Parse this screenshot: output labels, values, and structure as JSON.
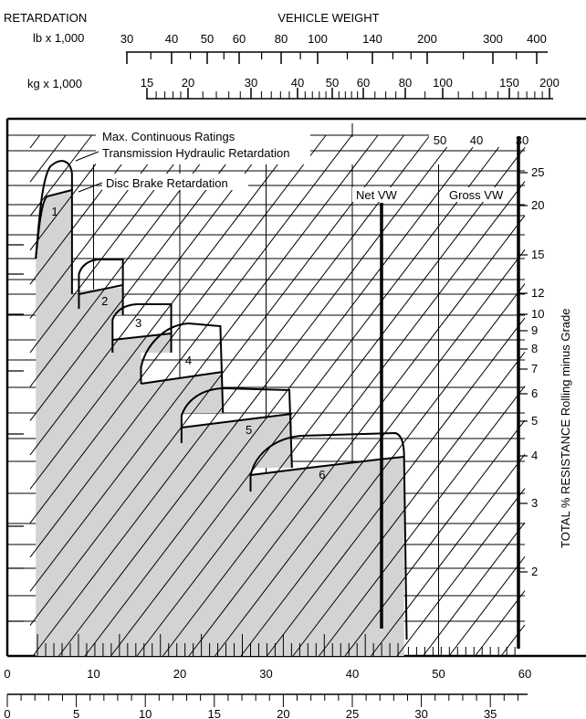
{
  "chart_data": {
    "type": "line",
    "title": "RETARDATION",
    "top_axis": {
      "title": "VEHICLE WEIGHT",
      "lb_label": "lb x 1,000",
      "kg_label": "kg x 1,000",
      "lb_ticks": [
        "30",
        "40",
        "50",
        "60",
        "80",
        "100",
        "140",
        "200",
        "300",
        "400"
      ],
      "kg_ticks": [
        "15",
        "20",
        "30",
        "40",
        "50",
        "60",
        "80",
        "100",
        "150",
        "200"
      ]
    },
    "bottom_axis": {
      "upper_ticks": [
        "0",
        "10",
        "20",
        "30",
        "40",
        "50",
        "60"
      ],
      "lower_ticks": [
        "0",
        "5",
        "10",
        "15",
        "20",
        "25",
        "30",
        "35"
      ],
      "upper_range": [
        0,
        60
      ],
      "lower_range": [
        0,
        37.7
      ]
    },
    "right_axis": {
      "title": "TOTAL % RESISTANCE Rolling minus Grade",
      "grade_ticks": [
        "25",
        "20",
        "15",
        "12",
        "10",
        "9",
        "8",
        "7",
        "6",
        "5",
        "4",
        "3",
        "2"
      ]
    },
    "weight_lines": {
      "top_labels": [
        "50",
        "40",
        "30"
      ],
      "net_label": "Net VW",
      "gross_label": "Gross VW"
    },
    "annotations": {
      "max_continuous": "Max. Continuous Ratings",
      "transmission": "Transmission Hydraulic Retardation",
      "disc_brake": "Disc Brake Retardation"
    },
    "gears": [
      {
        "name": "1",
        "x_range": [
          3.3,
          7.5
        ]
      },
      {
        "name": "2",
        "x_range": [
          8.3,
          13.4
        ]
      },
      {
        "name": "3",
        "x_range": [
          12.2,
          19.0
        ]
      },
      {
        "name": "4",
        "x_range": [
          15.5,
          25.0
        ]
      },
      {
        "name": "5",
        "x_range": [
          20.2,
          33.0
        ]
      },
      {
        "name": "6",
        "x_range": [
          28.2,
          46.0
        ]
      }
    ]
  },
  "colors": {
    "fill": "#d3d3d3",
    "line": "#000000"
  }
}
